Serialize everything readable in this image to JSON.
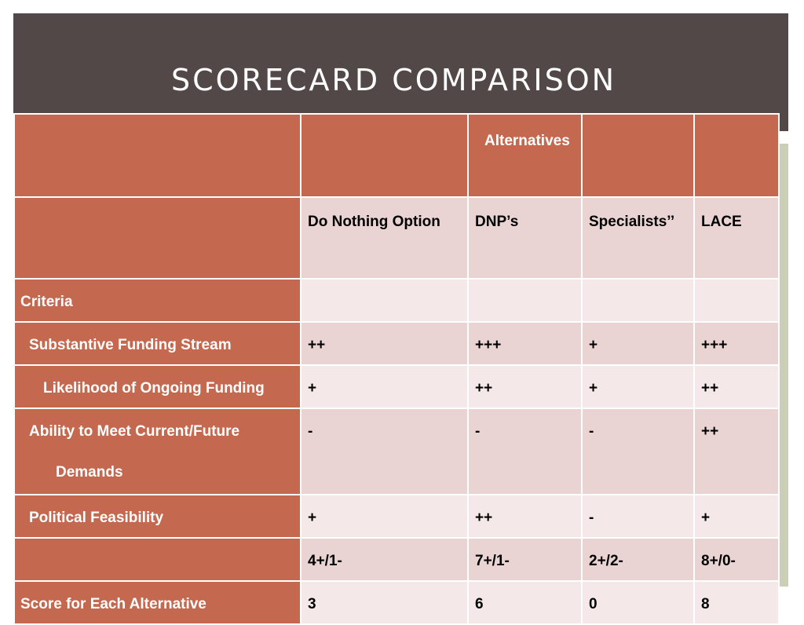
{
  "slide": {
    "title": "SCORECARD COMPARISON"
  },
  "table": {
    "group_header": "Alternatives",
    "columns": [
      "Do Nothing Option",
      "DNP’s",
      "Specialists’’",
      "LACE"
    ],
    "criteria_label": "Criteria",
    "rows": [
      {
        "label": "Substantive Funding Stream",
        "values": [
          "++",
          "+++",
          "+",
          "+++"
        ]
      },
      {
        "label": "Likelihood of Ongoing Funding",
        "values": [
          "+",
          "++",
          "+",
          "++"
        ]
      },
      {
        "label_line1": "Ability to Meet Current/Future",
        "label_line2": "Demands",
        "values": [
          "-",
          "-",
          "-",
          "++"
        ]
      },
      {
        "label": "Political Feasibility",
        "values": [
          "+",
          "++",
          "-",
          "+"
        ]
      }
    ],
    "totals": [
      "4+/1-",
      "7+/1-",
      "2+/2-",
      "8+/0-"
    ],
    "score_label": "Score for Each Alternative",
    "scores": [
      "3",
      "6",
      "0",
      "8"
    ]
  }
}
